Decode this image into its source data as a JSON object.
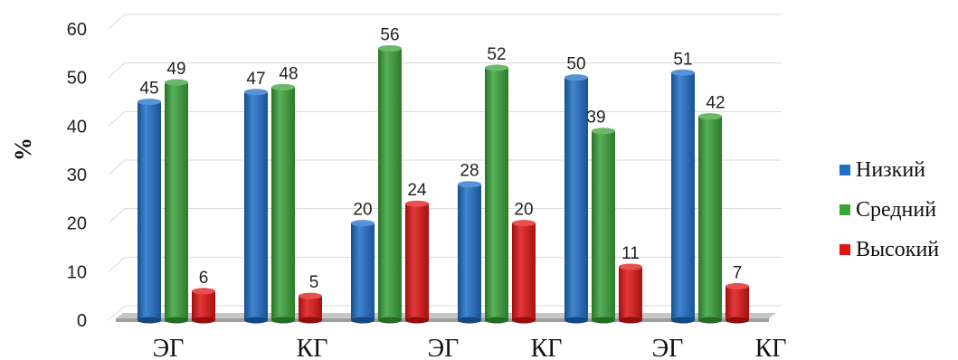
{
  "chart_data": {
    "type": "bar",
    "categories": [
      "ЭГ",
      "КГ",
      "ЭГ",
      "КГ",
      "ЭГ",
      "КГ"
    ],
    "ylabel": "%",
    "ylim": [
      0,
      60
    ],
    "yticks": [
      0,
      10,
      20,
      30,
      40,
      50,
      60
    ],
    "grid": true,
    "legend_position": "right",
    "series": [
      {
        "name": "Низкий",
        "color": "#1f6fc8",
        "values": [
          45,
          47,
          20,
          28,
          50,
          51
        ],
        "labels": [
          "45",
          "47",
          "20",
          "28",
          "50",
          "51"
        ]
      },
      {
        "name": "Средний",
        "color": "#3aa33a",
        "values": [
          49,
          48,
          56,
          52,
          39,
          42
        ],
        "labels": [
          "49",
          "48",
          "56",
          "52",
          "39",
          "42"
        ]
      },
      {
        "name": "Высокий",
        "color": "#e01515",
        "values": [
          6,
          5,
          24,
          20,
          11,
          7
        ],
        "labels": [
          "6",
          "5",
          "24",
          "20",
          "11",
          "7"
        ]
      }
    ]
  }
}
